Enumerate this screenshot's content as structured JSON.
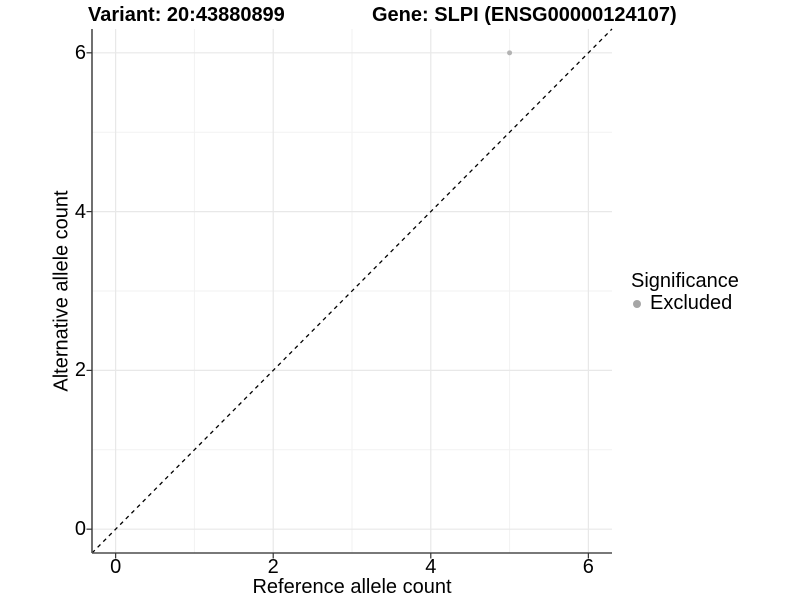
{
  "chart_data": {
    "type": "scatter",
    "title_left": "Variant: 20:43880899",
    "title_right": "Gene: SLPI (ENSG00000124107)",
    "xlabel": "Reference allele count",
    "ylabel": "Alternative allele count",
    "xlim": [
      -0.3,
      6.3
    ],
    "ylim": [
      -0.3,
      6.3
    ],
    "x_breaks": [
      0,
      2,
      4,
      6
    ],
    "y_breaks": [
      0,
      2,
      4,
      6
    ],
    "x_minor_breaks": [
      1,
      3,
      5
    ],
    "y_minor_breaks": [
      1,
      3,
      5
    ],
    "grid": "on",
    "series": [
      {
        "name": "Excluded",
        "color": "#b3b3b3",
        "points": [
          {
            "x": 5,
            "y": 6
          }
        ]
      }
    ],
    "abline": {
      "slope": 1,
      "intercept": 0,
      "style": "dashed",
      "color": "#000000"
    },
    "legend": {
      "title": "Significance",
      "position": "right",
      "entries": [
        {
          "label": "Excluded",
          "color": "#a6a6a6"
        }
      ]
    },
    "style_colors": {
      "axis_line": "#4d4d4d",
      "tick_mark": "#333333",
      "grid_major": "#e8e8e8",
      "grid_minor": "#f2f2f2",
      "background": "#ffffff"
    }
  }
}
